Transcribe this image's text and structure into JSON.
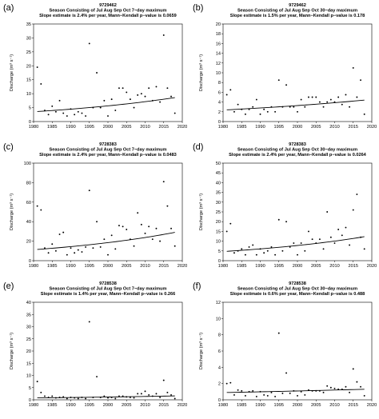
{
  "chart_data": [
    {
      "type": "scatter",
      "panel_label": "(a)",
      "title": [
        "9729462",
        "Season Consisting of Jul Aug Sep Oct  7−day maximum",
        "Slope estimate is 2.4% per year, Mann−Kendall p−value is 0.0659"
      ],
      "ylabel": "Discharge (m³ s⁻¹)",
      "xlim": [
        1980,
        2020
      ],
      "ylim": [
        0,
        35
      ],
      "xticks": [
        1980,
        1985,
        1990,
        1995,
        2000,
        2005,
        2010,
        2015,
        2020
      ],
      "yticks": [
        0,
        5,
        10,
        15,
        20,
        25,
        30,
        35
      ],
      "points": [
        [
          1981,
          19.5
        ],
        [
          1982,
          13.5
        ],
        [
          1983,
          4
        ],
        [
          1984,
          2.5
        ],
        [
          1985,
          5.5
        ],
        [
          1986,
          3.5
        ],
        [
          1987,
          7.5
        ],
        [
          1988,
          3
        ],
        [
          1989,
          2
        ],
        [
          1990,
          4.5
        ],
        [
          1991,
          2.5
        ],
        [
          1992,
          3.5
        ],
        [
          1993,
          3
        ],
        [
          1994,
          2
        ],
        [
          1995,
          28
        ],
        [
          1996,
          5
        ],
        [
          1997,
          17.5
        ],
        [
          1998,
          5
        ],
        [
          1999,
          7.5
        ],
        [
          2000,
          2
        ],
        [
          2001,
          8
        ],
        [
          2002,
          4
        ],
        [
          2003,
          12
        ],
        [
          2004,
          12
        ],
        [
          2005,
          10.5
        ],
        [
          2006,
          8
        ],
        [
          2007,
          5
        ],
        [
          2008,
          9.5
        ],
        [
          2009,
          10
        ],
        [
          2010,
          9
        ],
        [
          2011,
          12
        ],
        [
          2012,
          7.5
        ],
        [
          2013,
          12.5
        ],
        [
          2014,
          7
        ],
        [
          2015,
          31
        ],
        [
          2016,
          12
        ],
        [
          2017,
          9
        ],
        [
          2018,
          3
        ]
      ],
      "trend": {
        "x0": 1981,
        "y0": 3.6,
        "x1": 2018,
        "y1": 8.6
      }
    },
    {
      "type": "scatter",
      "panel_label": "(b)",
      "title": [
        "9729462",
        "Season Consisting of Jul Aug Sep Oct  30−day maximum",
        "Slope estimate is 1.5% per year, Mann−Kendall p−value is 0.178"
      ],
      "ylabel": "Discharge (m³ s⁻¹)",
      "xlim": [
        1980,
        2020
      ],
      "ylim": [
        0,
        20
      ],
      "xticks": [
        1980,
        1985,
        1990,
        1995,
        2000,
        2005,
        2010,
        2015,
        2020
      ],
      "yticks": [
        0,
        2,
        4,
        6,
        8,
        10,
        12,
        14,
        16,
        18,
        20
      ],
      "points": [
        [
          1981,
          5.5
        ],
        [
          1982,
          6.5
        ],
        [
          1983,
          2
        ],
        [
          1984,
          3.5
        ],
        [
          1985,
          2.5
        ],
        [
          1986,
          1.5
        ],
        [
          1987,
          2.5
        ],
        [
          1988,
          3
        ],
        [
          1989,
          4.5
        ],
        [
          1990,
          1.5
        ],
        [
          1991,
          2.5
        ],
        [
          1992,
          2
        ],
        [
          1993,
          3
        ],
        [
          1994,
          2
        ],
        [
          1995,
          8.5
        ],
        [
          1996,
          3
        ],
        [
          1997,
          7.5
        ],
        [
          1998,
          3
        ],
        [
          1999,
          3
        ],
        [
          2000,
          2
        ],
        [
          2001,
          4.5
        ],
        [
          2002,
          3
        ],
        [
          2003,
          5
        ],
        [
          2004,
          5
        ],
        [
          2005,
          5
        ],
        [
          2006,
          4
        ],
        [
          2007,
          3
        ],
        [
          2008,
          4
        ],
        [
          2009,
          4.5
        ],
        [
          2010,
          4
        ],
        [
          2011,
          5
        ],
        [
          2012,
          3.5
        ],
        [
          2013,
          5.5
        ],
        [
          2014,
          3
        ],
        [
          2015,
          11
        ],
        [
          2016,
          5
        ],
        [
          2017,
          8.5
        ],
        [
          2018,
          1.5
        ]
      ],
      "trend": {
        "x0": 1981,
        "y0": 2.4,
        "x1": 2018,
        "y1": 4.4
      }
    },
    {
      "type": "scatter",
      "panel_label": "(c)",
      "title": [
        "9728383",
        "Season Consisting of Jul Aug Sep Oct  7−day maximum",
        "Slope estimate is 2.4% per year, Mann−Kendall p−value is 0.0483"
      ],
      "ylabel": "Discharge (m³ s⁻¹)",
      "xlim": [
        1980,
        2020
      ],
      "ylim": [
        0,
        100
      ],
      "xticks": [
        1980,
        1985,
        1990,
        1995,
        2000,
        2005,
        2010,
        2015,
        2020
      ],
      "yticks": [
        0,
        20,
        40,
        60,
        80,
        100
      ],
      "points": [
        [
          1981,
          56
        ],
        [
          1982,
          52
        ],
        [
          1983,
          13
        ],
        [
          1984,
          8
        ],
        [
          1985,
          17
        ],
        [
          1986,
          10
        ],
        [
          1987,
          27
        ],
        [
          1988,
          29
        ],
        [
          1989,
          6
        ],
        [
          1990,
          13
        ],
        [
          1991,
          8
        ],
        [
          1992,
          11
        ],
        [
          1993,
          9
        ],
        [
          1994,
          14
        ],
        [
          1995,
          72
        ],
        [
          1996,
          13
        ],
        [
          1997,
          40
        ],
        [
          1998,
          14
        ],
        [
          1999,
          22
        ],
        [
          2000,
          6
        ],
        [
          2001,
          26
        ],
        [
          2002,
          12
        ],
        [
          2003,
          36
        ],
        [
          2004,
          35
        ],
        [
          2005,
          32
        ],
        [
          2006,
          22
        ],
        [
          2007,
          15
        ],
        [
          2008,
          49
        ],
        [
          2009,
          37
        ],
        [
          2010,
          28
        ],
        [
          2011,
          35
        ],
        [
          2012,
          22
        ],
        [
          2013,
          33
        ],
        [
          2014,
          20
        ],
        [
          2015,
          81
        ],
        [
          2016,
          56
        ],
        [
          2017,
          33
        ],
        [
          2018,
          15
        ]
      ],
      "trend": {
        "x0": 1981,
        "y0": 11.5,
        "x1": 2018,
        "y1": 29
      }
    },
    {
      "type": "scatter",
      "panel_label": "(d)",
      "title": [
        "9728383",
        "Season Consisting of Jul Aug Sep Oct  30−day maximum",
        "Slope estimate is 2.4% per year, Mann−Kendall p−value is 0.0264"
      ],
      "ylabel": "Discharge (m³ s⁻¹)",
      "xlim": [
        1980,
        2020
      ],
      "ylim": [
        0,
        50
      ],
      "xticks": [
        1980,
        1985,
        1990,
        1995,
        2000,
        2005,
        2010,
        2015,
        2020
      ],
      "yticks": [
        0,
        5,
        10,
        15,
        20,
        25,
        30,
        35,
        40,
        45,
        50
      ],
      "points": [
        [
          1981,
          15
        ],
        [
          1982,
          19
        ],
        [
          1983,
          4
        ],
        [
          1984,
          5
        ],
        [
          1985,
          6
        ],
        [
          1986,
          3
        ],
        [
          1987,
          7
        ],
        [
          1988,
          8
        ],
        [
          1989,
          3
        ],
        [
          1990,
          6
        ],
        [
          1991,
          4
        ],
        [
          1992,
          5
        ],
        [
          1993,
          7
        ],
        [
          1994,
          3
        ],
        [
          1995,
          21
        ],
        [
          1996,
          5
        ],
        [
          1997,
          20
        ],
        [
          1998,
          7
        ],
        [
          1999,
          9
        ],
        [
          2000,
          3
        ],
        [
          2001,
          9
        ],
        [
          2002,
          5
        ],
        [
          2003,
          15
        ],
        [
          2004,
          11
        ],
        [
          2005,
          9
        ],
        [
          2006,
          11
        ],
        [
          2007,
          6
        ],
        [
          2008,
          25
        ],
        [
          2009,
          12
        ],
        [
          2010,
          9
        ],
        [
          2011,
          16
        ],
        [
          2012,
          13
        ],
        [
          2013,
          17
        ],
        [
          2014,
          8
        ],
        [
          2015,
          26
        ],
        [
          2016,
          34
        ],
        [
          2017,
          12
        ],
        [
          2018,
          6
        ]
      ],
      "trend": {
        "x0": 1981,
        "y0": 4.8,
        "x1": 2018,
        "y1": 12.3
      }
    },
    {
      "type": "scatter",
      "panel_label": "(e)",
      "title": [
        "9728538",
        "Season Consisting of Jul Aug Sep Oct  7−day maximum",
        "Slope estimate is 1.4% per year, Mann−Kendall p−value is 0.266"
      ],
      "ylabel": "Discharge (m³ s⁻¹)",
      "xlim": [
        1980,
        2020
      ],
      "ylim": [
        0,
        40
      ],
      "xticks": [
        1980,
        1985,
        1990,
        1995,
        2000,
        2005,
        2010,
        2015,
        2020
      ],
      "yticks": [
        0,
        5,
        10,
        15,
        20,
        25,
        30,
        35,
        40
      ],
      "points": [
        [
          1981,
          7.5
        ],
        [
          1982,
          3
        ],
        [
          1983,
          1.5
        ],
        [
          1984,
          1
        ],
        [
          1985,
          1.5
        ],
        [
          1986,
          0.8
        ],
        [
          1987,
          1
        ],
        [
          1988,
          1.2
        ],
        [
          1989,
          0.5
        ],
        [
          1990,
          1
        ],
        [
          1991,
          0.8
        ],
        [
          1992,
          0.5
        ],
        [
          1993,
          1
        ],
        [
          1994,
          0.5
        ],
        [
          1995,
          32
        ],
        [
          1996,
          1
        ],
        [
          1997,
          9.5
        ],
        [
          1998,
          1
        ],
        [
          1999,
          1.5
        ],
        [
          2000,
          0.8
        ],
        [
          2001,
          1
        ],
        [
          2002,
          0.5
        ],
        [
          2003,
          1.5
        ],
        [
          2004,
          1.5
        ],
        [
          2005,
          1.2
        ],
        [
          2006,
          1
        ],
        [
          2007,
          0.8
        ],
        [
          2008,
          2.5
        ],
        [
          2009,
          2.5
        ],
        [
          2010,
          3.5
        ],
        [
          2011,
          2
        ],
        [
          2012,
          1.5
        ],
        [
          2013,
          2.5
        ],
        [
          2014,
          1
        ],
        [
          2015,
          8
        ],
        [
          2016,
          3
        ],
        [
          2017,
          2
        ],
        [
          2018,
          0.5
        ]
      ],
      "trend": {
        "x0": 1981,
        "y0": 0.8,
        "x1": 2018,
        "y1": 1.6
      }
    },
    {
      "type": "scatter",
      "panel_label": "(f)",
      "title": [
        "9728538",
        "Season Consisting of Jul Aug Sep Oct  30−day maximum",
        "Slope estimate is 0.6% per year, Mann−Kendall p−value is 0.488"
      ],
      "ylabel": "Discharge (m³ s⁻¹)",
      "xlim": [
        1980,
        2020
      ],
      "ylim": [
        0,
        12
      ],
      "xticks": [
        1980,
        1985,
        1990,
        1995,
        2000,
        2005,
        2010,
        2015,
        2020
      ],
      "yticks": [
        0,
        2,
        4,
        6,
        8,
        10,
        12
      ],
      "points": [
        [
          1981,
          2
        ],
        [
          1982,
          2.1
        ],
        [
          1983,
          0.6
        ],
        [
          1984,
          1.2
        ],
        [
          1985,
          1.1
        ],
        [
          1986,
          0.5
        ],
        [
          1987,
          1
        ],
        [
          1988,
          1.1
        ],
        [
          1989,
          0.4
        ],
        [
          1990,
          1
        ],
        [
          1991,
          0.6
        ],
        [
          1992,
          0.5
        ],
        [
          1993,
          0.9
        ],
        [
          1994,
          0.4
        ],
        [
          1995,
          8.2
        ],
        [
          1996,
          0.8
        ],
        [
          1997,
          3.3
        ],
        [
          1998,
          0.8
        ],
        [
          1999,
          1.1
        ],
        [
          2000,
          0.5
        ],
        [
          2001,
          1
        ],
        [
          2002,
          0.6
        ],
        [
          2003,
          1.2
        ],
        [
          2004,
          1.1
        ],
        [
          2005,
          1.1
        ],
        [
          2006,
          1.1
        ],
        [
          2007,
          0.9
        ],
        [
          2008,
          1.7
        ],
        [
          2009,
          1.5
        ],
        [
          2010,
          1.4
        ],
        [
          2011,
          1.3
        ],
        [
          2012,
          1.3
        ],
        [
          2013,
          1.6
        ],
        [
          2014,
          0.9
        ],
        [
          2015,
          3.8
        ],
        [
          2016,
          2.2
        ],
        [
          2017,
          1.6
        ],
        [
          2018,
          0.5
        ]
      ],
      "trend": {
        "x0": 1981,
        "y0": 0.9,
        "x1": 2018,
        "y1": 1.3
      }
    }
  ]
}
